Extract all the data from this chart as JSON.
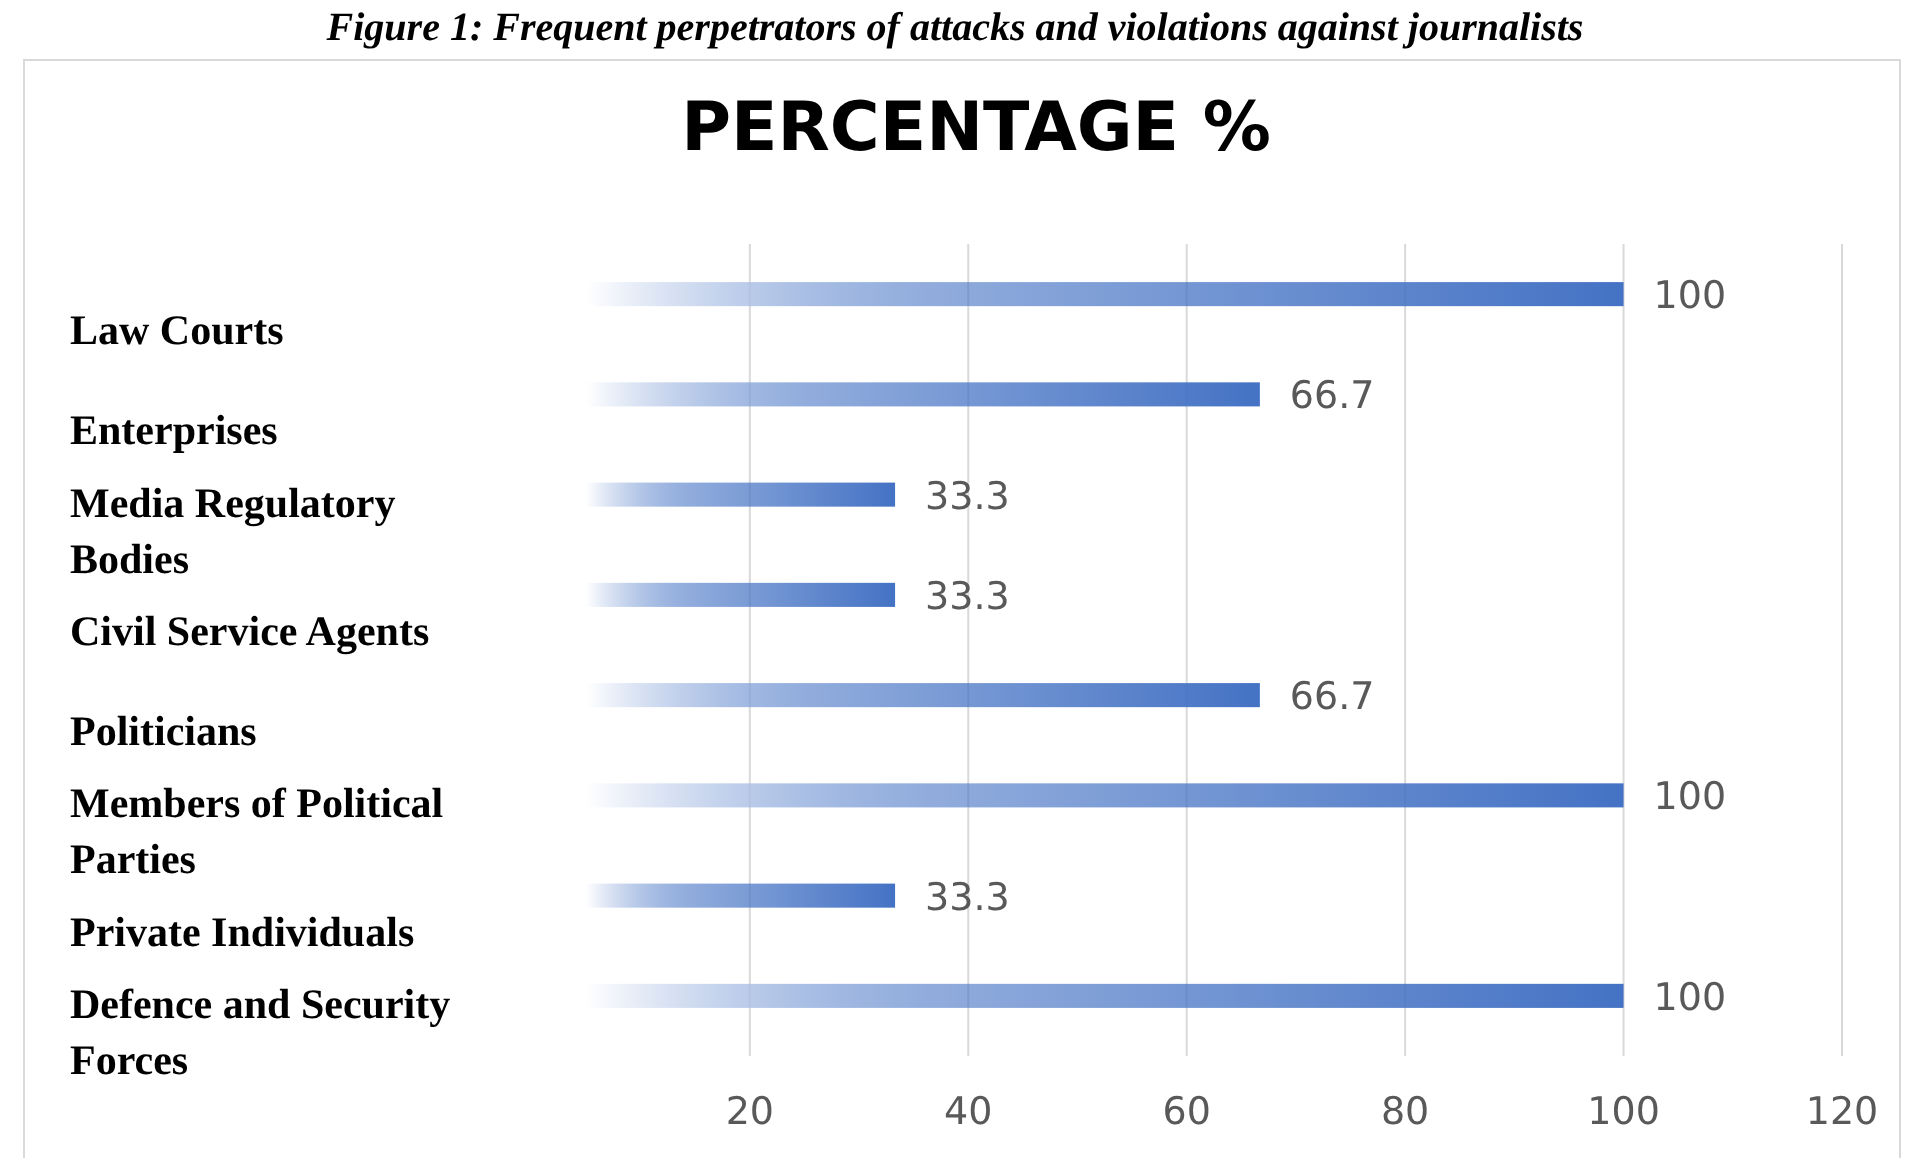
{
  "chart_data": {
    "type": "bar",
    "orientation": "horizontal",
    "title": "PERCENTAGE %",
    "annotations": [
      "Figure 1: Frequent perpetrators of attacks and violations against journalists"
    ],
    "categories": [
      "Law Courts",
      "Enterprises",
      "Media Regulatory Bodies",
      "Civil Service Agents",
      "Politicians",
      "Members of Political Parties",
      "Private Individuals",
      "Defence and Security Forces"
    ],
    "values": [
      100,
      66.7,
      33.3,
      33.3,
      66.7,
      100,
      33.3,
      100
    ],
    "color": "#4472c4",
    "xlim": [
      5,
      120
    ],
    "xticks": [
      20,
      40,
      60,
      80,
      100,
      120
    ],
    "grid": "x",
    "data_labels": true
  }
}
